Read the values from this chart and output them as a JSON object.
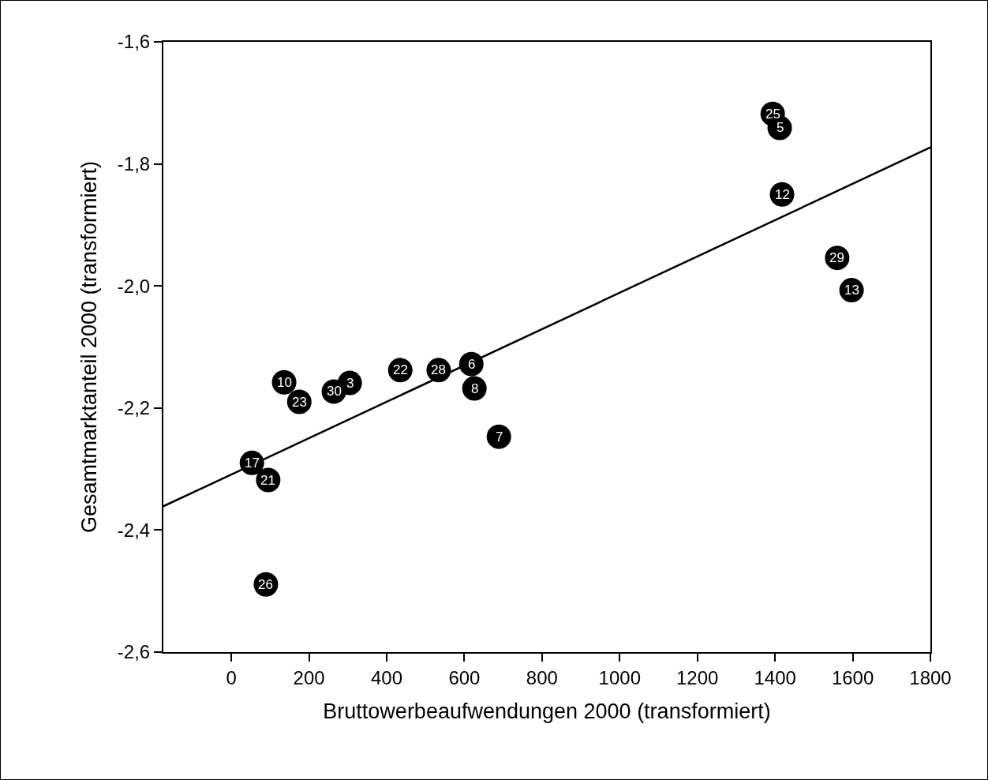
{
  "chart_data": {
    "type": "scatter",
    "xlabel": "Bruttowerbeaufwendungen 2000 (transformiert)",
    "ylabel": "Gesamtmarktanteil 2000 (transformiert)",
    "xlim": [
      -175,
      1800
    ],
    "xticks": [
      0,
      200,
      400,
      600,
      800,
      1000,
      1200,
      1400,
      1600,
      1800
    ],
    "ylim": [
      -2.6,
      -1.6
    ],
    "yticks": [
      {
        "value": -2.6,
        "label": "-2,6"
      },
      {
        "value": -2.4,
        "label": "-2,4"
      },
      {
        "value": -2.2,
        "label": "-2,2"
      },
      {
        "value": -2.0,
        "label": "-2,0"
      },
      {
        "value": -1.8,
        "label": "-1,8"
      },
      {
        "value": -1.6,
        "label": "-1,6"
      }
    ],
    "grid": false,
    "series": [
      {
        "marker": "circle",
        "color": "#000000",
        "x": [
          1394,
          1412,
          1418,
          1560,
          1597,
          618,
          626,
          689,
          534,
          435,
          305,
          264,
          136,
          175,
          53,
          95,
          89
        ],
        "values": [
          -1.718,
          -1.741,
          -1.85,
          -1.954,
          -2.007,
          -2.128,
          -2.168,
          -2.247,
          -2.138,
          -2.138,
          -2.159,
          -2.173,
          -2.158,
          -2.19,
          -2.29,
          -2.318,
          -2.489
        ]
      },
      {
        "type": "line",
        "color": "#000000",
        "line_style": "solid",
        "x": [
          -175,
          1800
        ],
        "values": [
          -2.361,
          -1.773
        ]
      }
    ],
    "annotations": [
      {
        "text": "25",
        "x": 1394,
        "y": -1.718
      },
      {
        "text": "5",
        "x": 1412,
        "y": -1.741
      },
      {
        "text": "12",
        "x": 1418,
        "y": -1.85
      },
      {
        "text": "29",
        "x": 1560,
        "y": -1.954
      },
      {
        "text": "13",
        "x": 1597,
        "y": -2.007
      },
      {
        "text": "6",
        "x": 618,
        "y": -2.128
      },
      {
        "text": "8",
        "x": 626,
        "y": -2.168
      },
      {
        "text": "7",
        "x": 689,
        "y": -2.247
      },
      {
        "text": "28",
        "x": 534,
        "y": -2.138
      },
      {
        "text": "22",
        "x": 435,
        "y": -2.138
      },
      {
        "text": "3",
        "x": 305,
        "y": -2.159
      },
      {
        "text": "30",
        "x": 264,
        "y": -2.173
      },
      {
        "text": "10",
        "x": 136,
        "y": -2.158
      },
      {
        "text": "23",
        "x": 175,
        "y": -2.19
      },
      {
        "text": "17",
        "x": 53,
        "y": -2.29
      },
      {
        "text": "21",
        "x": 95,
        "y": -2.318
      },
      {
        "text": "26",
        "x": 89,
        "y": -2.489
      }
    ]
  }
}
